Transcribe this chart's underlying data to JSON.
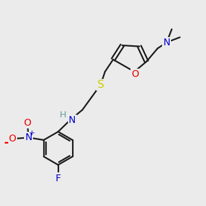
{
  "bg_color": "#ebebeb",
  "atom_colors": {
    "C": "#000000",
    "H": "#5f9f9f",
    "N": "#0000cc",
    "O": "#ee0000",
    "S": "#cccc00",
    "F": "#0000cc"
  },
  "bond_color": "#1a1a1a",
  "bond_width": 1.6
}
